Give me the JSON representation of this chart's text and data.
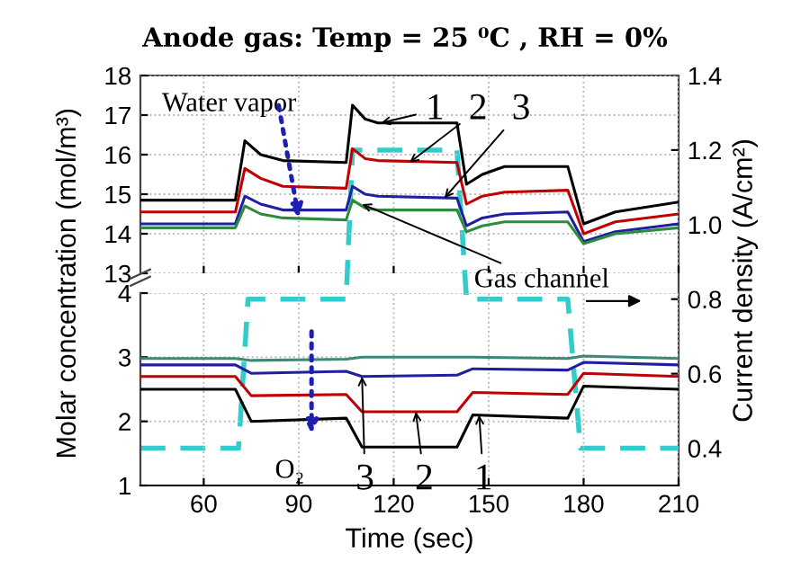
{
  "chart_data": [
    {
      "type": "line",
      "title": "Anode gas: Temp = 25 ⁰C , RH = 0%",
      "xlim": [
        40,
        210
      ],
      "xticks": [
        60,
        90,
        120,
        150,
        180,
        210
      ],
      "ylim": [
        13,
        18
      ],
      "yticks": [
        13,
        14,
        15,
        16,
        17,
        18
      ],
      "grid": true,
      "tick_labels": "y",
      "annotations": [
        {
          "text": "Water vapor",
          "x": 90,
          "y": 14.4
        },
        {
          "text": "1",
          "x": 116,
          "y": 16.8
        },
        {
          "text": "2",
          "x": 125,
          "y": 15.8
        },
        {
          "text": "3",
          "x": 136,
          "y": 14.9
        },
        {
          "text": "Gas channel",
          "x": 110,
          "y": 14.75
        }
      ],
      "series": [
        {
          "color": "#000000",
          "x": [
            40,
            70,
            73,
            78,
            85,
            105,
            107,
            111,
            115,
            140,
            143,
            148,
            155,
            175,
            180,
            190,
            210
          ],
          "values": [
            14.85,
            14.85,
            16.35,
            16.0,
            15.85,
            15.8,
            17.25,
            16.9,
            16.8,
            16.8,
            15.25,
            15.5,
            15.7,
            15.7,
            14.25,
            14.55,
            14.8
          ]
        },
        {
          "color": "#c00000",
          "x": [
            40,
            70,
            73,
            78,
            85,
            105,
            107,
            111,
            115,
            140,
            143,
            148,
            155,
            175,
            180,
            190,
            210
          ],
          "values": [
            14.55,
            14.55,
            15.65,
            15.4,
            15.2,
            15.15,
            16.15,
            15.9,
            15.85,
            15.8,
            14.75,
            14.95,
            15.05,
            15.1,
            14.0,
            14.3,
            14.5
          ]
        },
        {
          "color": "#1f1f9f",
          "x": [
            40,
            70,
            73,
            78,
            85,
            105,
            107,
            111,
            115,
            140,
            143,
            148,
            155,
            175,
            180,
            190,
            210
          ],
          "values": [
            14.25,
            14.25,
            14.95,
            14.75,
            14.6,
            14.6,
            15.2,
            15.0,
            14.95,
            14.9,
            14.2,
            14.4,
            14.5,
            14.55,
            13.8,
            14.05,
            14.25
          ]
        },
        {
          "color": "#2e8b3e",
          "x": [
            40,
            70,
            73,
            78,
            85,
            105,
            107,
            111,
            115,
            140,
            143,
            148,
            155,
            175,
            180,
            190,
            210
          ],
          "values": [
            14.15,
            14.15,
            14.7,
            14.5,
            14.4,
            14.35,
            14.85,
            14.65,
            14.6,
            14.6,
            14.05,
            14.2,
            14.3,
            14.3,
            13.75,
            14.0,
            14.15
          ]
        }
      ]
    },
    {
      "type": "line",
      "xlabel": "Time (sec)",
      "ylabel": "Molar concentration (mol/m³)",
      "xlim": [
        40,
        210
      ],
      "xticks": [
        60,
        90,
        120,
        150,
        180,
        210
      ],
      "ylim": [
        1,
        4
      ],
      "yticks": [
        1,
        2,
        3,
        4
      ],
      "grid": true,
      "annotations": [
        "O₂",
        {
          "text": "3",
          "x": 110,
          "y": 2.7
        },
        {
          "text": "2",
          "x": 127,
          "y": 2.15
        },
        {
          "text": "1",
          "x": 147,
          "y": 2.1
        }
      ],
      "series": [
        {
          "color": "#000000",
          "x": [
            40,
            70,
            75,
            105,
            110,
            140,
            145,
            175,
            180,
            210
          ],
          "values": [
            2.5,
            2.5,
            2.0,
            2.05,
            1.6,
            1.6,
            2.1,
            2.05,
            2.55,
            2.5
          ]
        },
        {
          "color": "#c00000",
          "x": [
            40,
            70,
            75,
            105,
            110,
            140,
            145,
            175,
            180,
            210
          ],
          "values": [
            2.7,
            2.7,
            2.4,
            2.42,
            2.15,
            2.15,
            2.45,
            2.42,
            2.75,
            2.7
          ]
        },
        {
          "color": "#1f1f9f",
          "x": [
            40,
            70,
            75,
            105,
            110,
            140,
            145,
            175,
            180,
            210
          ],
          "values": [
            2.88,
            2.88,
            2.75,
            2.78,
            2.7,
            2.72,
            2.82,
            2.8,
            2.92,
            2.88
          ]
        },
        {
          "color": "#3a8a7a",
          "x": [
            40,
            70,
            75,
            105,
            110,
            140,
            145,
            175,
            180,
            210
          ],
          "values": [
            2.98,
            2.98,
            2.95,
            2.97,
            3.0,
            3.0,
            3.0,
            2.98,
            3.02,
            2.98
          ]
        }
      ]
    },
    {
      "type": "line",
      "ylabel": "Current density (A/cm²)",
      "xlim": [
        40,
        210
      ],
      "xticks": [
        60,
        90,
        120,
        150,
        180,
        210
      ],
      "ylim": [
        0.3,
        1.4
      ],
      "yticks": [
        0.4,
        0.6,
        0.8,
        {
          "value": 1.0,
          "label": "1.0"
        },
        1.2,
        1.4
      ],
      "tick_labels": "y",
      "series": [
        {
          "color": "#33cccc",
          "line_style": "dashed",
          "x": [
            40,
            71,
            74,
            105,
            107,
            140,
            143,
            175,
            179,
            210
          ],
          "values": [
            0.4,
            0.4,
            0.8,
            0.8,
            1.2,
            1.2,
            0.8,
            0.8,
            0.4,
            0.4
          ]
        }
      ]
    }
  ]
}
